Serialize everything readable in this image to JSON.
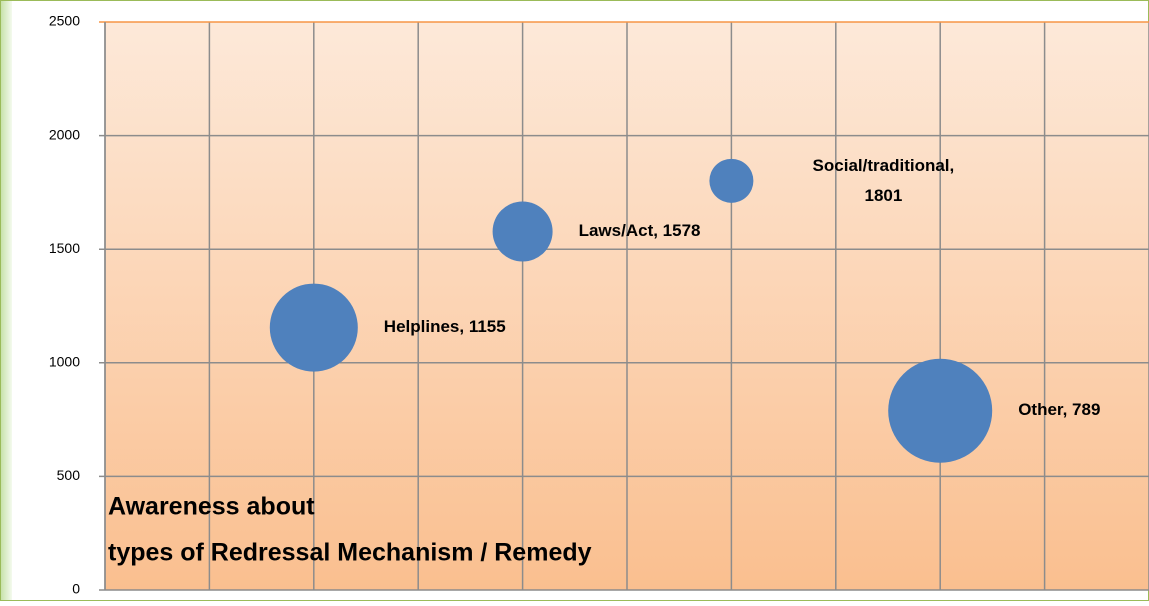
{
  "chart_data": {
    "type": "bubble",
    "title": [
      "Awareness about",
      "types of Redressal Mechanism / Remedy"
    ],
    "categories": [
      "Helplines",
      "Laws/Act",
      "Social/traditional",
      "Other"
    ],
    "x": [
      2,
      4,
      6,
      8
    ],
    "values": [
      1155,
      1578,
      1801,
      789
    ],
    "value_labels": [
      "Helplines, 1155",
      "Laws/Act, 1578",
      "Social/traditional, 1801",
      "Other, 789"
    ],
    "sizes": [
      1936,
      900,
      484,
      2704
    ],
    "color": "#4f81bd",
    "xlim": [
      0,
      10
    ],
    "xticks": [
      0,
      1,
      2,
      3,
      4,
      5,
      6,
      7,
      8,
      9,
      10
    ],
    "ylim": [
      0,
      2500
    ],
    "yticks": [
      0,
      500,
      1000,
      1500,
      2000,
      2500
    ],
    "grid": true
  }
}
